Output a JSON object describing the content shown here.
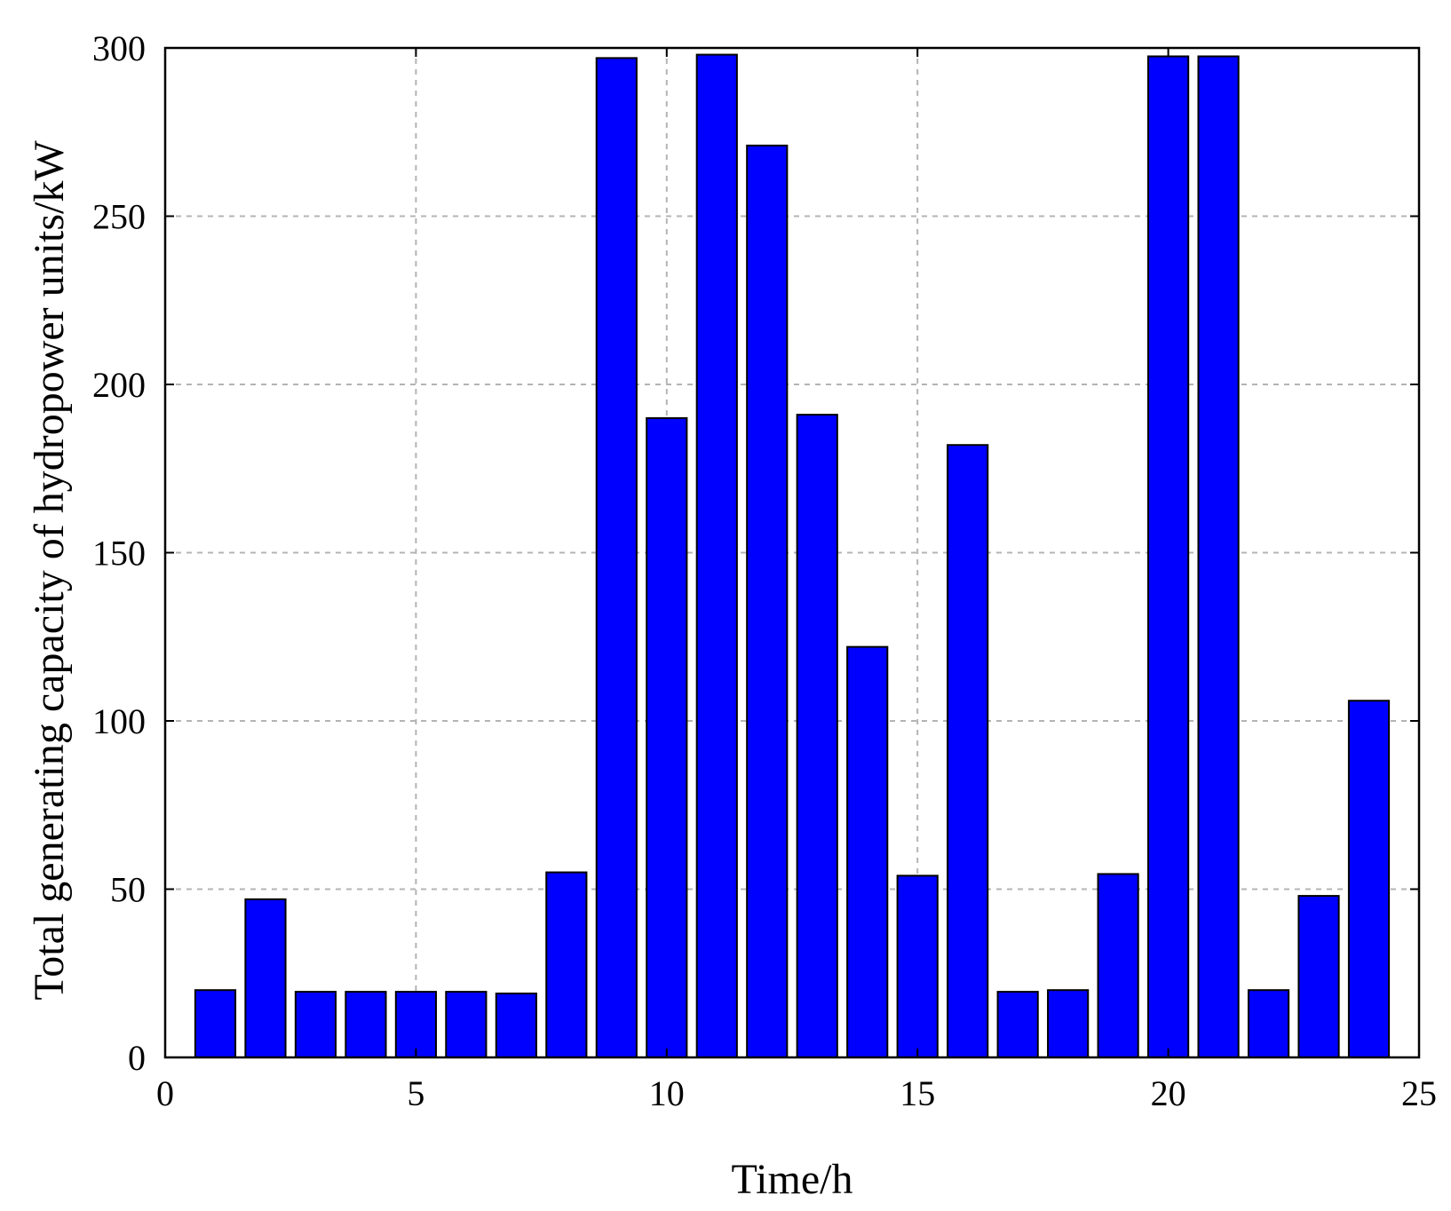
{
  "chart_data": {
    "type": "bar",
    "title": "",
    "xlabel": "Time/h",
    "ylabel": "Total generating capacity of hydropower units/kW",
    "xlim": [
      0,
      25
    ],
    "ylim": [
      0,
      300
    ],
    "xticks": [
      0,
      5,
      10,
      15,
      20,
      25
    ],
    "yticks": [
      0,
      50,
      100,
      150,
      200,
      250,
      300
    ],
    "grid": true,
    "bar_color": "#0000ff",
    "bar_width": 0.8,
    "x": [
      1,
      2,
      3,
      4,
      5,
      6,
      7,
      8,
      9,
      10,
      11,
      12,
      13,
      14,
      15,
      16,
      17,
      18,
      19,
      20,
      21,
      22,
      23,
      24
    ],
    "values": [
      20,
      47,
      19.5,
      19.5,
      19.5,
      19.5,
      19,
      55,
      297,
      190,
      298,
      271,
      191,
      122,
      54,
      182,
      19.5,
      20,
      54.5,
      297.5,
      297.5,
      20,
      48,
      106
    ]
  }
}
